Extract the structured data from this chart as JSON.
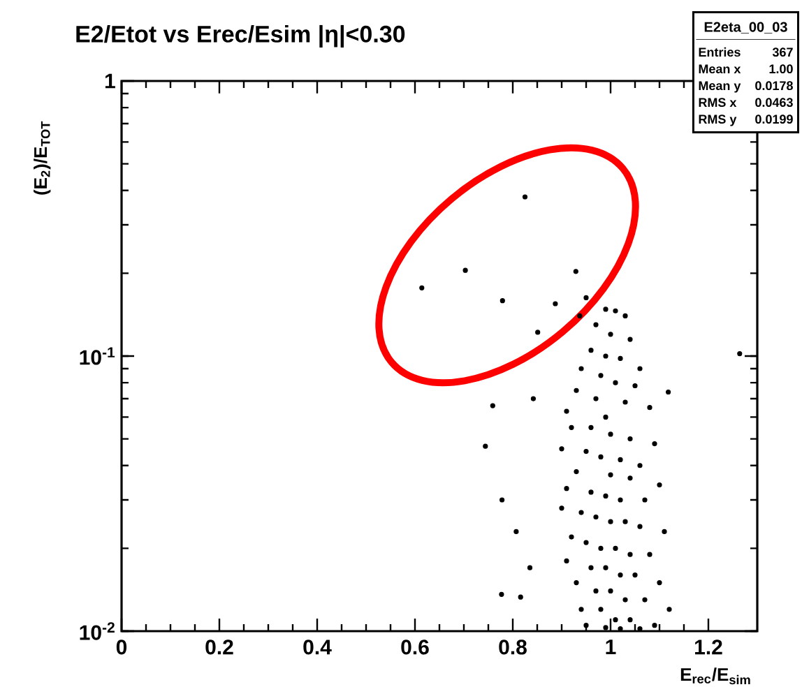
{
  "chart_data": {
    "type": "scatter",
    "title": "E2/Etot vs Erec/Esim |η|<0.30",
    "xlabel": "E$_{rec}$/E$_{sim}$",
    "ylabel": "(E$_{2}$)/E$_{TOT}$",
    "log": "y",
    "grid": false,
    "marker": "circle",
    "color": "#000000",
    "xlim": [
      0,
      1.3
    ],
    "ylim": [
      0.01,
      1
    ],
    "xticks": [
      0,
      0.2,
      0.4,
      0.6,
      0.8,
      1,
      1.2
    ],
    "yticks": [
      {
        "value": 0.01,
        "label": "10$^{-2}$"
      },
      {
        "value": 0.1,
        "label": "10$^{-1}$"
      },
      1
    ],
    "annotations": [
      "E2eta_00_03",
      "Entries",
      "367",
      "Mean x",
      "1.00",
      "Mean y",
      "0.0178",
      "RMS x",
      "0.0463",
      "RMS y",
      "0.0199"
    ],
    "x": [
      0.825,
      0.703,
      0.614,
      0.929,
      0.779,
      0.887,
      0.851,
      0.95,
      0.937,
      0.759,
      0.744,
      0.778,
      0.807,
      0.835,
      0.777,
      0.816,
      0.842,
      1.118,
      1.264,
      0.99,
      1.01,
      1.03,
      0.97,
      1.0,
      1.04,
      0.96,
      0.99,
      1.02,
      1.06,
      0.94,
      0.98,
      1.01,
      1.05,
      0.93,
      0.97,
      1.03,
      1.08,
      0.91,
      0.99,
      0.92,
      0.96,
      1.0,
      1.04,
      1.09,
      0.9,
      0.95,
      0.98,
      1.02,
      1.06,
      0.93,
      1.0,
      1.04,
      1.1,
      0.91,
      0.96,
      0.99,
      1.02,
      1.07,
      0.9,
      0.94,
      0.97,
      1.0,
      1.03,
      1.06,
      1.11,
      0.92,
      0.95,
      0.98,
      1.01,
      1.04,
      1.08,
      0.91,
      0.96,
      0.99,
      1.02,
      1.05,
      1.1,
      0.93,
      0.97,
      1.0,
      1.03,
      1.07,
      1.12,
      0.94,
      0.98,
      1.01,
      1.04,
      1.09,
      0.95,
      0.99,
      1.02,
      1.06
    ],
    "values": [
      0.379,
      0.205,
      0.177,
      0.203,
      0.159,
      0.155,
      0.122,
      0.163,
      0.14,
      0.066,
      0.047,
      0.03,
      0.023,
      0.017,
      0.0136,
      0.0133,
      0.07,
      0.074,
      0.102,
      0.148,
      0.146,
      0.14,
      0.13,
      0.12,
      0.115,
      0.105,
      0.1,
      0.098,
      0.09,
      0.09,
      0.085,
      0.08,
      0.078,
      0.075,
      0.07,
      0.068,
      0.065,
      0.063,
      0.06,
      0.055,
      0.055,
      0.052,
      0.05,
      0.048,
      0.046,
      0.045,
      0.043,
      0.042,
      0.04,
      0.038,
      0.037,
      0.036,
      0.034,
      0.033,
      0.032,
      0.031,
      0.03,
      0.03,
      0.028,
      0.027,
      0.026,
      0.025,
      0.025,
      0.024,
      0.023,
      0.022,
      0.021,
      0.02,
      0.02,
      0.019,
      0.019,
      0.018,
      0.017,
      0.017,
      0.016,
      0.016,
      0.015,
      0.015,
      0.014,
      0.014,
      0.013,
      0.013,
      0.012,
      0.012,
      0.012,
      0.011,
      0.011,
      0.0105,
      0.0105,
      0.0103,
      0.0102,
      0.0102
    ]
  }
}
